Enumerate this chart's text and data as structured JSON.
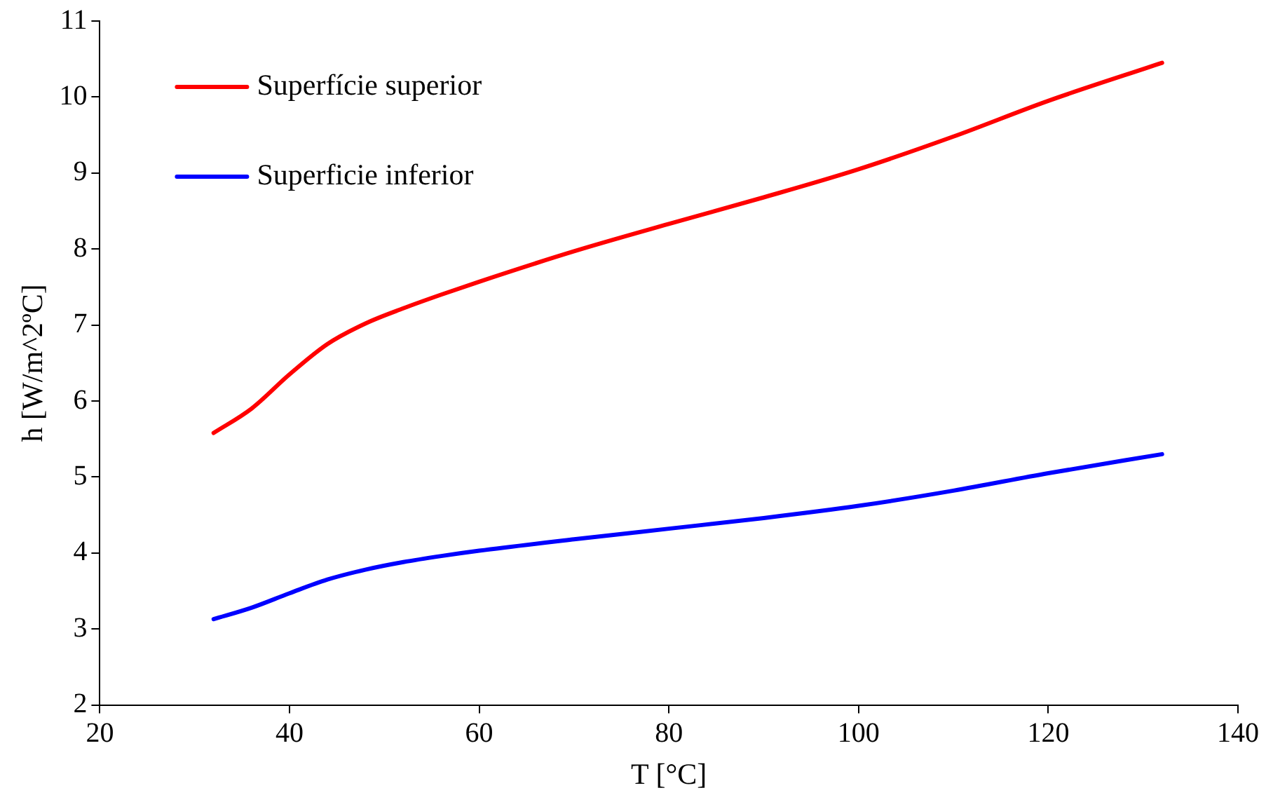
{
  "chart_data": {
    "type": "line",
    "xlabel": "T [°C]",
    "ylabel": "h [W/m^2ºC]",
    "xlim": [
      20,
      140
    ],
    "xticks": [
      20,
      40,
      60,
      80,
      100,
      120,
      140
    ],
    "ylim": [
      2,
      11
    ],
    "yticks": [
      2,
      3,
      4,
      5,
      6,
      7,
      8,
      9,
      10,
      11
    ],
    "grid": false,
    "legend": "top left",
    "marker": "none",
    "line_style": "solid",
    "series": [
      {
        "name": "Superfície superior",
        "color": "#ff0000",
        "x": [
          32,
          36,
          40,
          44,
          48,
          52,
          56,
          60,
          70,
          80,
          90,
          100,
          110,
          120,
          132
        ],
        "values": [
          5.58,
          5.9,
          6.35,
          6.75,
          7.02,
          7.22,
          7.4,
          7.57,
          7.97,
          8.33,
          8.68,
          9.05,
          9.48,
          9.95,
          10.45
        ]
      },
      {
        "name": "Superficie inferior",
        "color": "#0000ff",
        "x": [
          32,
          36,
          40,
          44,
          48,
          52,
          56,
          60,
          70,
          80,
          90,
          100,
          110,
          120,
          132
        ],
        "values": [
          3.13,
          3.28,
          3.47,
          3.65,
          3.78,
          3.88,
          3.96,
          4.03,
          4.18,
          4.32,
          4.46,
          4.62,
          4.82,
          5.05,
          5.3
        ]
      }
    ]
  }
}
